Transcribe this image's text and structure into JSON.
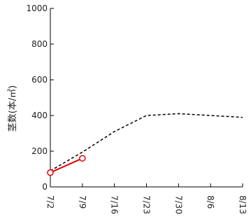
{
  "chart_data": {
    "type": "line",
    "title": "",
    "xlabel": "",
    "ylabel": "茎数(本/㎡)",
    "categories": [
      "7/2",
      "7/9",
      "7/16",
      "7/23",
      "7/30",
      "8/6",
      "8/13"
    ],
    "ylim": [
      0,
      1000
    ],
    "yticks": [
      "0",
      "200",
      "400",
      "600",
      "800",
      "1000"
    ],
    "grid": false,
    "legend": "none",
    "series": [
      {
        "name": "",
        "style": "dashed",
        "color": "#000000",
        "x": [
          "7/2",
          "7/9",
          "7/16",
          "7/23",
          "7/30",
          "8/13"
        ],
        "values": [
          90,
          195,
          310,
          400,
          410,
          390
        ]
      },
      {
        "name": "",
        "style": "solid",
        "color": "#e60000",
        "marker": "open-circle",
        "x": [
          "7/2",
          "7/9"
        ],
        "values": [
          80,
          160
        ]
      }
    ]
  }
}
